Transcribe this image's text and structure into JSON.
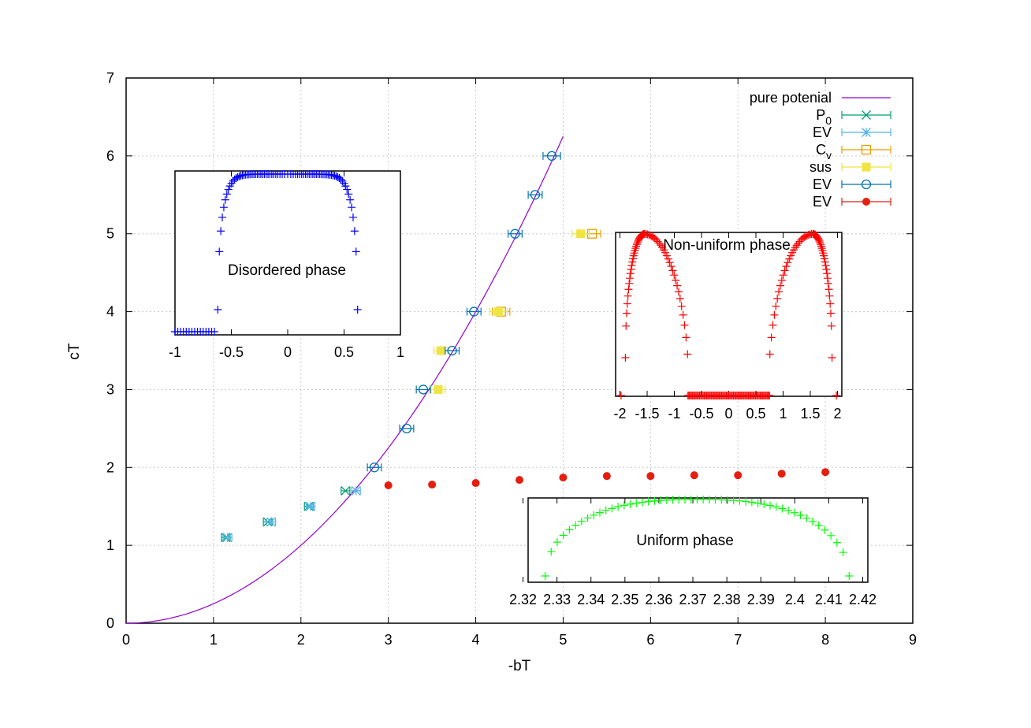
{
  "chart_data": {
    "type": "scatter",
    "xlabel": "-bT",
    "ylabel": "cT",
    "xlim": [
      0,
      9
    ],
    "ylim": [
      0,
      7
    ],
    "xticks": [
      "0",
      "1",
      "2",
      "3",
      "4",
      "5",
      "6",
      "7",
      "8",
      "9"
    ],
    "yticks": [
      "0",
      "1",
      "2",
      "3",
      "4",
      "5",
      "6",
      "7"
    ],
    "grid": true,
    "legend_position": "top-right",
    "colors": {
      "pure": "#9400d3",
      "p0": "#009e73",
      "ev1": "#56b4e9",
      "cv": "#e69f00",
      "sus": "#f0e442",
      "ev2": "#0072b2",
      "ev3": "#e51e10",
      "inset_blue": "#0000ff",
      "inset_red": "#ff0000",
      "inset_green": "#00ff00"
    },
    "series": [
      {
        "name": "pure potenial",
        "kind": "line",
        "color": "#9400d3",
        "x_range": [
          0,
          5
        ]
      },
      {
        "name": "P",
        "sub": "0",
        "kind": "cross",
        "color": "#009e73",
        "points": [
          [
            1.14,
            1.1,
            0.05
          ],
          [
            1.62,
            1.3,
            0.05
          ],
          [
            2.09,
            1.5,
            0.05
          ],
          [
            2.51,
            1.7,
            0.05
          ]
        ]
      },
      {
        "name": "EV",
        "kind": "star",
        "color": "#56b4e9",
        "points": [
          [
            1.16,
            1.1,
            0.05
          ],
          [
            1.66,
            1.3,
            0.05
          ],
          [
            2.11,
            1.5,
            0.05
          ],
          [
            2.63,
            1.7,
            0.05
          ]
        ]
      },
      {
        "name": "C",
        "sub": "v",
        "kind": "open-square",
        "color": "#e69f00",
        "points": [
          [
            4.29,
            4.0,
            0.1
          ],
          [
            5.33,
            5.0,
            0.1
          ]
        ]
      },
      {
        "name": "sus",
        "kind": "filled-square",
        "color": "#f0e442",
        "points": [
          [
            3.57,
            3.0,
            0.08
          ],
          [
            3.6,
            3.5,
            0.08
          ],
          [
            4.26,
            4.0,
            0.1
          ],
          [
            5.2,
            5.0,
            0.1
          ]
        ]
      },
      {
        "name": "EV",
        "kind": "open-circle",
        "color": "#0072b2",
        "points": [
          [
            2.84,
            2.0,
            0.08
          ],
          [
            3.21,
            2.5,
            0.08
          ],
          [
            3.4,
            3.0,
            0.08
          ],
          [
            3.73,
            3.5,
            0.08
          ],
          [
            3.98,
            4.0,
            0.08
          ],
          [
            4.45,
            5.0,
            0.08
          ],
          [
            4.68,
            5.5,
            0.08
          ],
          [
            4.87,
            6.0,
            0.1
          ]
        ]
      },
      {
        "name": "EV",
        "kind": "filled-circle",
        "color": "#e51e10",
        "points": [
          [
            3.0,
            1.77,
            0
          ],
          [
            3.5,
            1.78,
            0
          ],
          [
            4.0,
            1.8,
            0
          ],
          [
            4.5,
            1.84,
            0
          ],
          [
            5.0,
            1.87,
            0
          ],
          [
            5.5,
            1.89,
            0
          ],
          [
            6.0,
            1.89,
            0
          ],
          [
            6.5,
            1.9,
            0
          ],
          [
            7.0,
            1.9,
            0
          ],
          [
            7.5,
            1.92,
            0
          ],
          [
            8.0,
            1.94,
            0
          ]
        ]
      }
    ],
    "insets": [
      {
        "label": "Disordered phase",
        "color": "#0000ff",
        "xticks": [
          "-1",
          "-0.5",
          "0",
          "0.5",
          "1"
        ]
      },
      {
        "label": "Non-uniform phase",
        "color": "#ff0000",
        "xticks": [
          "-2",
          "-1.5",
          "-1",
          "-0.5",
          "0",
          "0.5",
          "1",
          "1.5",
          "2"
        ]
      },
      {
        "label": "Uniform phase",
        "color": "#00ff00",
        "xticks": [
          "2.32",
          "2.33",
          "2.34",
          "2.35",
          "2.36",
          "2.37",
          "2.38",
          "2.39",
          "2.4",
          "2.41",
          "2.42"
        ]
      }
    ]
  }
}
